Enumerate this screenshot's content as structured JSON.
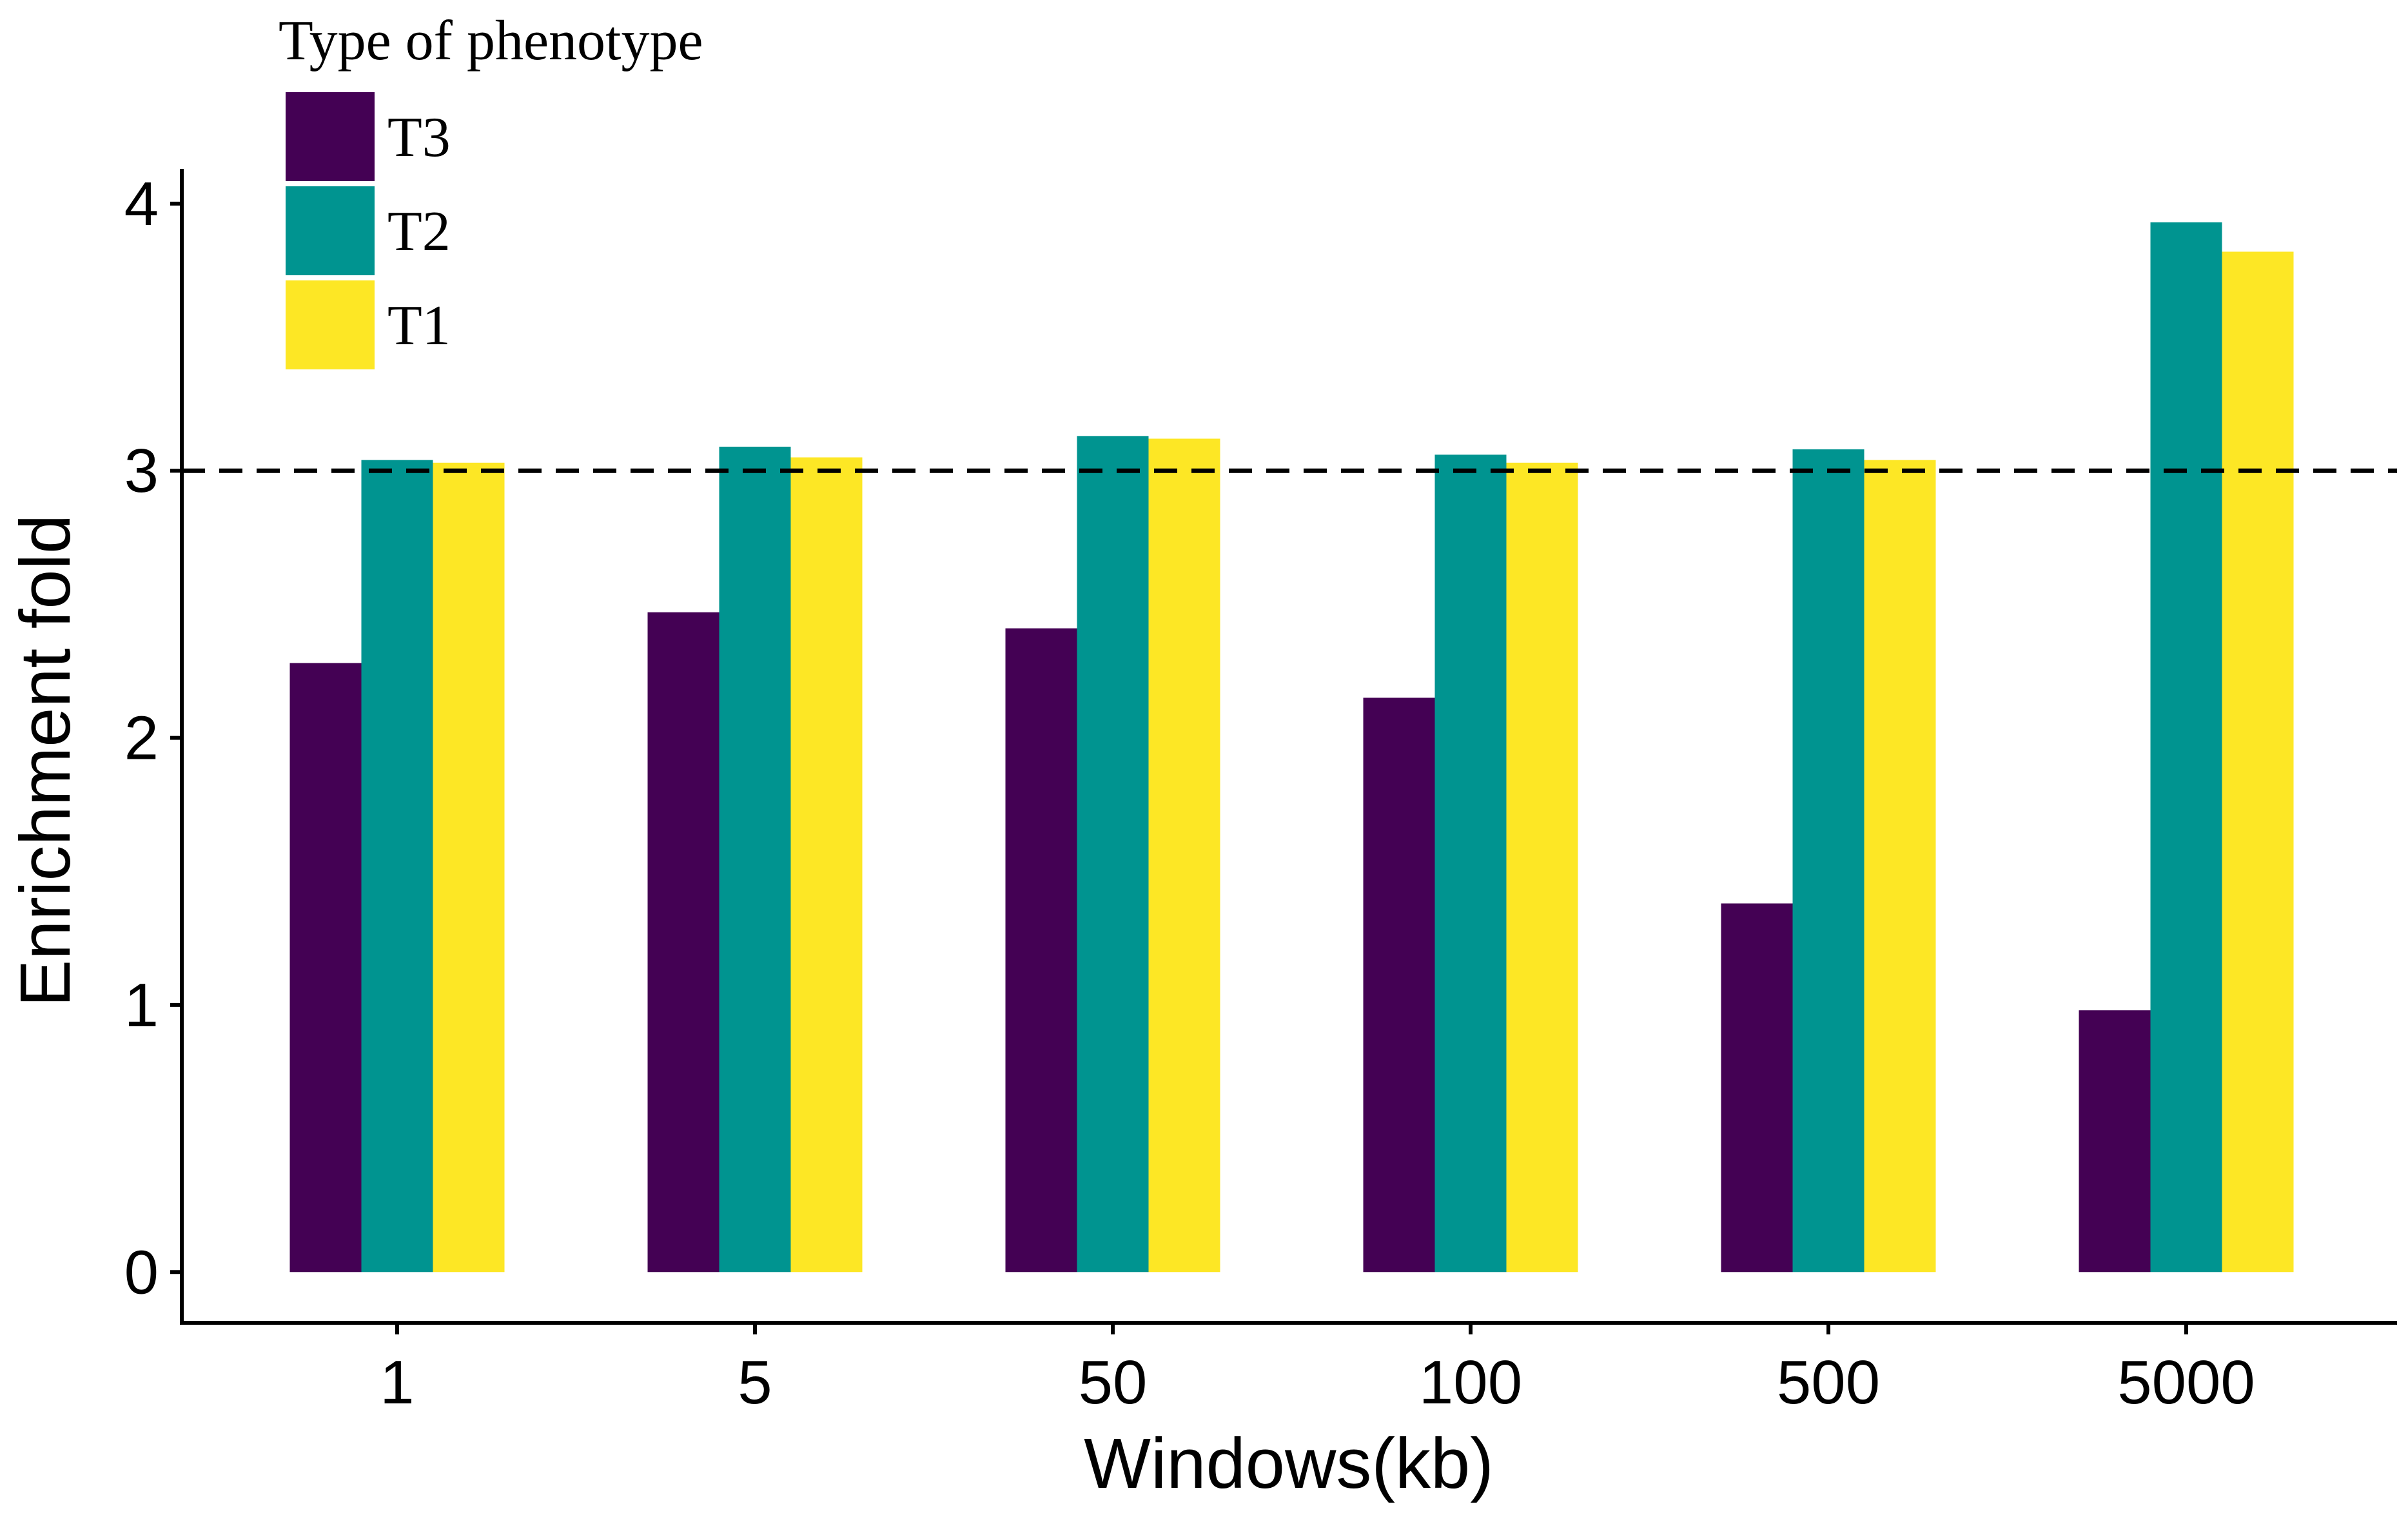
{
  "chart_data": {
    "type": "bar",
    "title": "",
    "xlabel": "Windows(kb)",
    "ylabel": "Enrichment fold",
    "categories": [
      "1",
      "5",
      "50",
      "100",
      "500",
      "5000"
    ],
    "series": [
      {
        "name": "T3",
        "color": "#440154",
        "values": [
          2.28,
          2.47,
          2.41,
          2.15,
          1.38,
          0.98
        ]
      },
      {
        "name": "T2",
        "color": "#009490",
        "values": [
          3.04,
          3.09,
          3.13,
          3.06,
          3.08,
          3.93
        ]
      },
      {
        "name": "T1",
        "color": "#FDE725",
        "values": [
          3.03,
          3.05,
          3.12,
          3.03,
          3.04,
          3.82
        ]
      }
    ],
    "yticks": [
      0,
      1,
      2,
      3,
      4
    ],
    "ylim": [
      -0.19,
      4.13
    ],
    "reference_line": {
      "y": 3,
      "style": "dashed",
      "color": "#000000"
    },
    "legend": {
      "title": "Type of phenotype",
      "position": "top-left",
      "entries": [
        "T3",
        "T2",
        "T1"
      ]
    },
    "grid": false
  }
}
